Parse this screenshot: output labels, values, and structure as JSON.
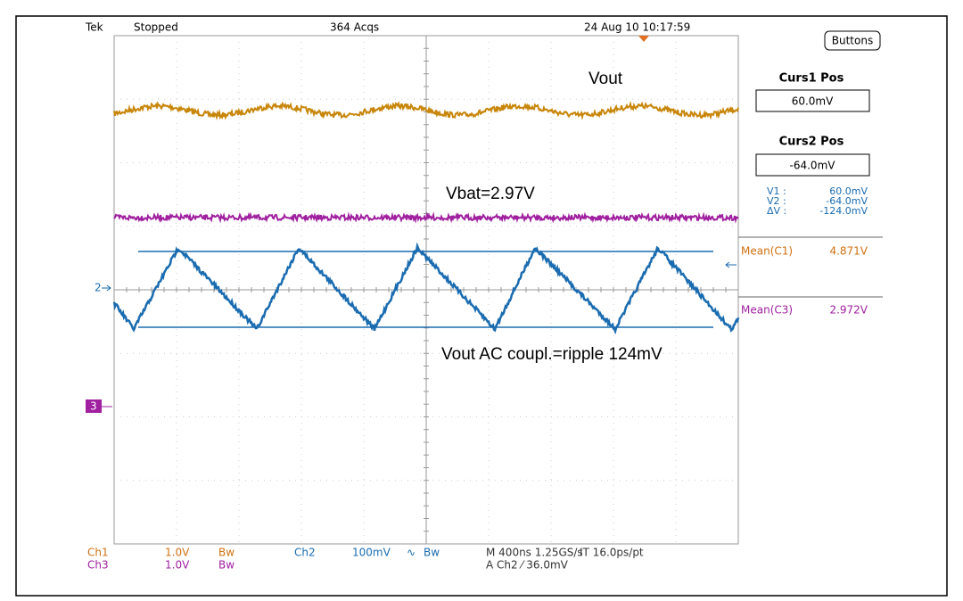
{
  "status_bar": {
    "brand": "Tek",
    "state": "Stopped",
    "acquisitions": "364 Acqs",
    "timestamp": "24 Aug 10 10:17:59"
  },
  "side_panel": {
    "button": "Buttons",
    "cursor1_title": "Curs1 Pos",
    "cursor1_value": "60.0mV",
    "cursor2_title": "Curs2 Pos",
    "cursor2_value": "-64.0mV",
    "readouts": [
      {
        "label": "V1 :",
        "value": "60.0mV"
      },
      {
        "label": "V2 :",
        "value": "-64.0mV"
      },
      {
        "label": "ΔV :",
        "value": "-124.0mV"
      }
    ],
    "measurements": [
      {
        "label": "Mean(C1)",
        "value": "4.871V"
      },
      {
        "label": "Mean(C3)",
        "value": "2.972V"
      }
    ]
  },
  "annotations": {
    "vout": "Vout",
    "vbat": "Vbat=2.97V",
    "ripple": "Vout AC coupl.=ripple 124mV"
  },
  "markers": {
    "ch2": "2",
    "ch3": "3"
  },
  "footer": {
    "row1": [
      "Ch1",
      "1.0V",
      "Bw",
      "Ch2",
      "100mV",
      "∿",
      "Bw",
      "M 400ns 1.25GS/s",
      "IT 16.0ps/pt"
    ],
    "row2": [
      "Ch3",
      "1.0V",
      "Bw",
      "A Ch2 ⁄ 36.0mV"
    ]
  }
}
